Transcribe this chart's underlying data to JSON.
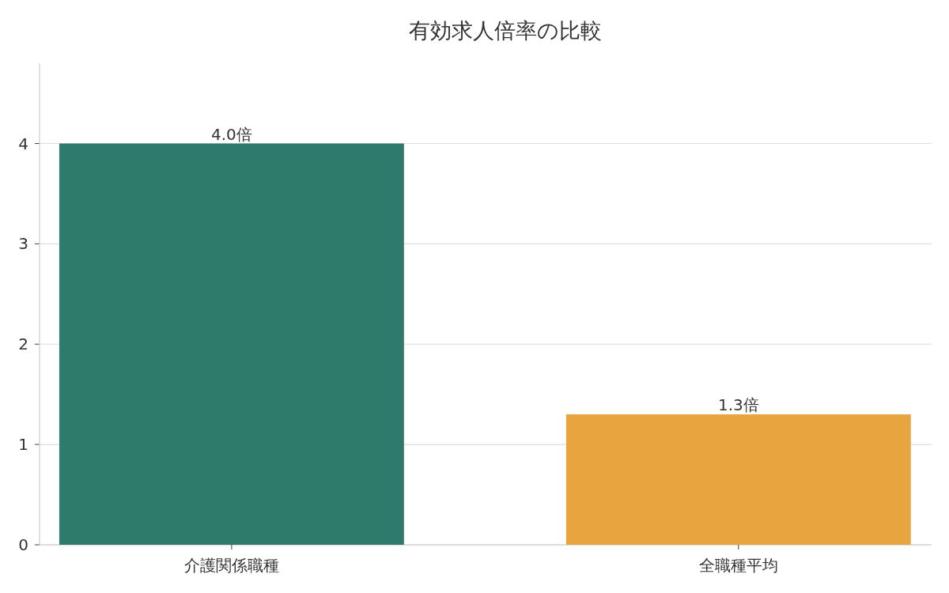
{
  "chart_data": {
    "type": "bar",
    "title": "有効求人倍率の比較",
    "categories": [
      "介護関係職種",
      "全職種平均"
    ],
    "values": [
      4.0,
      1.3
    ],
    "colors": [
      "#2e7b6b",
      "#e8a43e"
    ],
    "value_labels": [
      "4.0倍",
      "1.3倍"
    ],
    "ylim": [
      0,
      4.8
    ],
    "yticks": [
      0,
      1,
      2,
      3,
      4
    ],
    "grid": "y"
  }
}
